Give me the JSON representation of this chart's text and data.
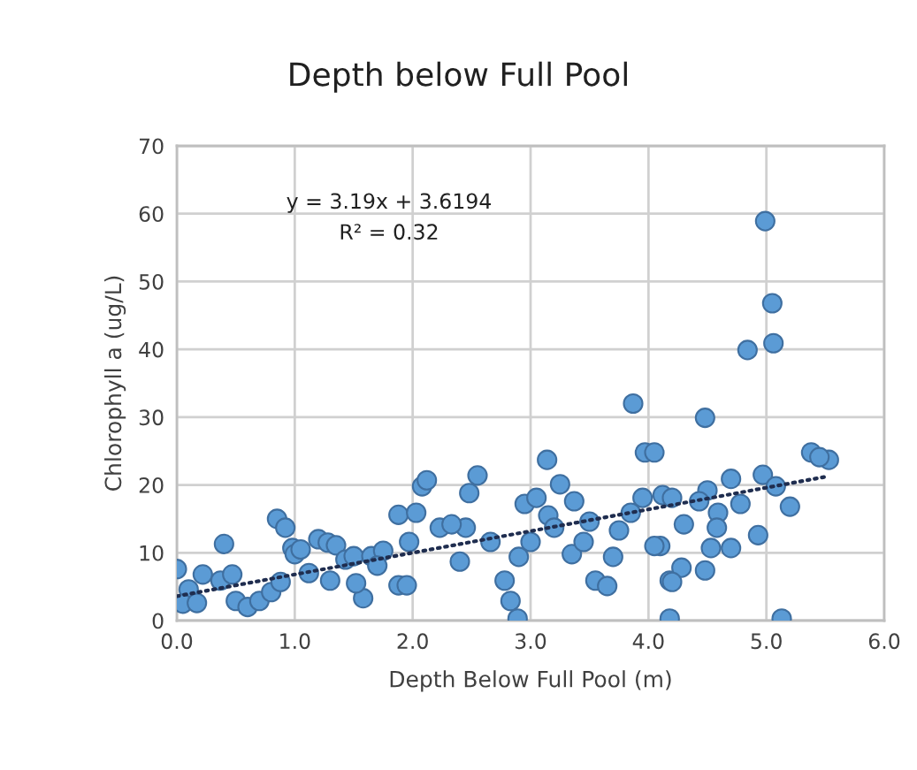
{
  "chart_data": {
    "type": "scatter",
    "title": "Depth below Full Pool",
    "xlabel": "Depth Below Full Pool (m)",
    "ylabel": "Chlorophyll a (ug/L)",
    "annotations": [
      "y = 3.19x + 3.6194",
      "R² = 0.32"
    ],
    "xlim": [
      0,
      6
    ],
    "xticks": [
      {
        "value": 0,
        "label": "0.0"
      },
      {
        "value": 1,
        "label": "1.0"
      },
      {
        "value": 2,
        "label": "2.0"
      },
      {
        "value": 3,
        "label": "3.0"
      },
      {
        "value": 4,
        "label": "4.0"
      },
      {
        "value": 5,
        "label": "5.0"
      },
      {
        "value": 6,
        "label": "6.0"
      }
    ],
    "ylim": [
      0,
      70
    ],
    "yticks": [
      0,
      10,
      20,
      30,
      40,
      50,
      60,
      70
    ],
    "grid": true,
    "marker": "circle",
    "series": [
      {
        "color": "#5b9bd5",
        "x": [
          0.0,
          0.1,
          0.05,
          0.17,
          0.22,
          0.4,
          0.37,
          0.47,
          0.5,
          0.6,
          0.7,
          0.8,
          0.88,
          0.85,
          0.92,
          0.98,
          1.0,
          1.05,
          1.12,
          1.2,
          1.28,
          1.35,
          1.3,
          1.43,
          1.5,
          1.58,
          1.52,
          1.65,
          1.75,
          1.7,
          1.88,
          1.97,
          2.08,
          1.88,
          2.03,
          2.12,
          1.95,
          2.23,
          2.45,
          2.33,
          2.4,
          2.55,
          2.48,
          2.66,
          2.78,
          2.83,
          2.89,
          2.9,
          3.0,
          2.95,
          3.05,
          3.14,
          3.25,
          3.37,
          3.15,
          3.2,
          3.35,
          3.5,
          3.45,
          3.55,
          3.65,
          3.7,
          3.75,
          3.85,
          3.87,
          3.97,
          4.05,
          4.12,
          3.95,
          4.1,
          4.18,
          4.18,
          4.99,
          5.05,
          5.06,
          4.84,
          4.48,
          5.38,
          5.53,
          5.45,
          4.97,
          5.08,
          5.2,
          4.7,
          4.78,
          4.93,
          4.5,
          4.3,
          4.2,
          4.43,
          4.59,
          4.58,
          4.53,
          4.7,
          4.48,
          4.28,
          4.2,
          5.13,
          4.05
        ],
        "values": [
          7.6,
          4.6,
          2.5,
          2.6,
          6.8,
          11.3,
          5.9,
          6.8,
          2.9,
          2.0,
          2.9,
          4.2,
          5.7,
          15.0,
          13.7,
          10.7,
          9.8,
          10.5,
          7.0,
          12.0,
          11.5,
          11.1,
          5.9,
          9.0,
          9.5,
          3.3,
          5.5,
          9.5,
          10.3,
          8.1,
          5.2,
          11.6,
          19.8,
          15.6,
          15.9,
          20.7,
          5.2,
          13.7,
          13.7,
          14.2,
          8.7,
          21.4,
          18.8,
          11.6,
          5.9,
          2.9,
          0.3,
          9.4,
          11.6,
          17.2,
          18.1,
          23.7,
          20.1,
          17.6,
          15.5,
          13.7,
          9.8,
          14.6,
          11.6,
          5.9,
          5.1,
          9.4,
          13.3,
          15.9,
          32.0,
          24.8,
          24.8,
          18.5,
          18.1,
          11.0,
          5.9,
          0.3,
          58.9,
          46.8,
          40.9,
          39.9,
          29.9,
          24.8,
          23.7,
          24.1,
          21.5,
          19.8,
          16.8,
          20.9,
          17.2,
          12.6,
          19.2,
          14.2,
          18.1,
          17.6,
          15.9,
          13.7,
          10.7,
          10.7,
          7.4,
          7.8,
          5.7,
          0.3,
          11.0
        ]
      },
      {
        "type": "line",
        "color": "#1f2d4f",
        "line_style": "dotted",
        "marker": "none",
        "x": [
          0.0,
          5.5
        ],
        "values": [
          3.6,
          21.2
        ]
      }
    ]
  }
}
